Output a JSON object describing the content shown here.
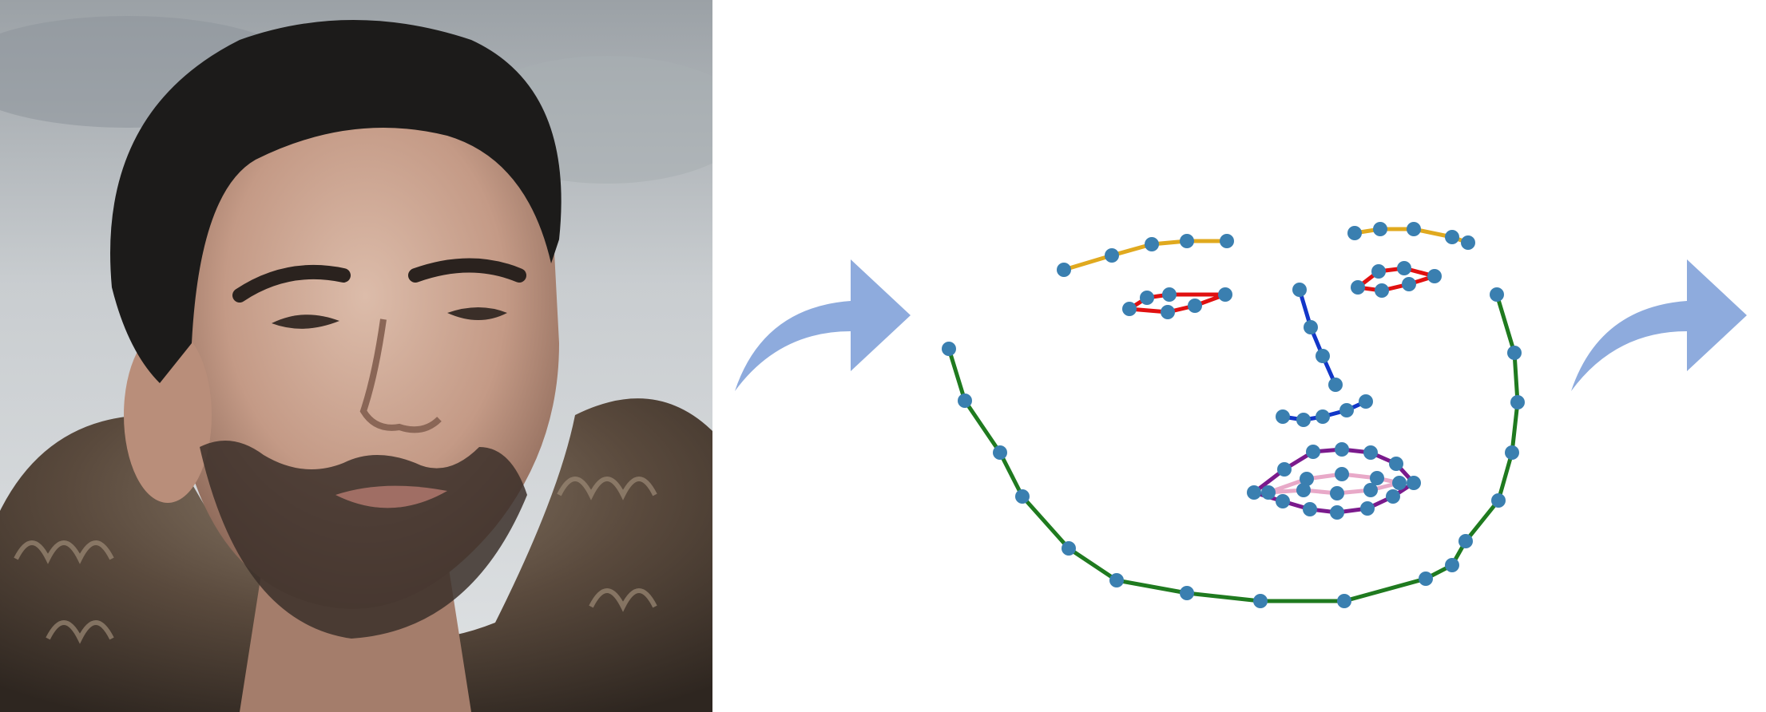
{
  "photo": {
    "subject": "portrait-of-bearded-man-in-fur-cloak",
    "colors": {
      "sky": "#c8cccf",
      "hair": "#1c1b1a",
      "skin": "#c9a594",
      "fur": "#5a4d42"
    }
  },
  "arrows": {
    "color": "#8eabdd",
    "count": 2
  },
  "landmarks": {
    "point_color": "#3a7fb0",
    "groups": [
      {
        "name": "jaw",
        "color": "#1f7a1f",
        "closed": false
      },
      {
        "name": "left-eyebrow",
        "color": "#e0a91e",
        "closed": false
      },
      {
        "name": "right-eyebrow",
        "color": "#e0a91e",
        "closed": false
      },
      {
        "name": "nose-bridge",
        "color": "#1236c8",
        "closed": false
      },
      {
        "name": "nose-base",
        "color": "#1236c8",
        "closed": false
      },
      {
        "name": "left-eye",
        "color": "#e01010",
        "closed": true
      },
      {
        "name": "right-eye",
        "color": "#e01010",
        "closed": true
      },
      {
        "name": "outer-lip",
        "color": "#7a1a8c",
        "closed": true
      },
      {
        "name": "inner-lip",
        "color": "#e8a9c8",
        "closed": true
      }
    ]
  }
}
